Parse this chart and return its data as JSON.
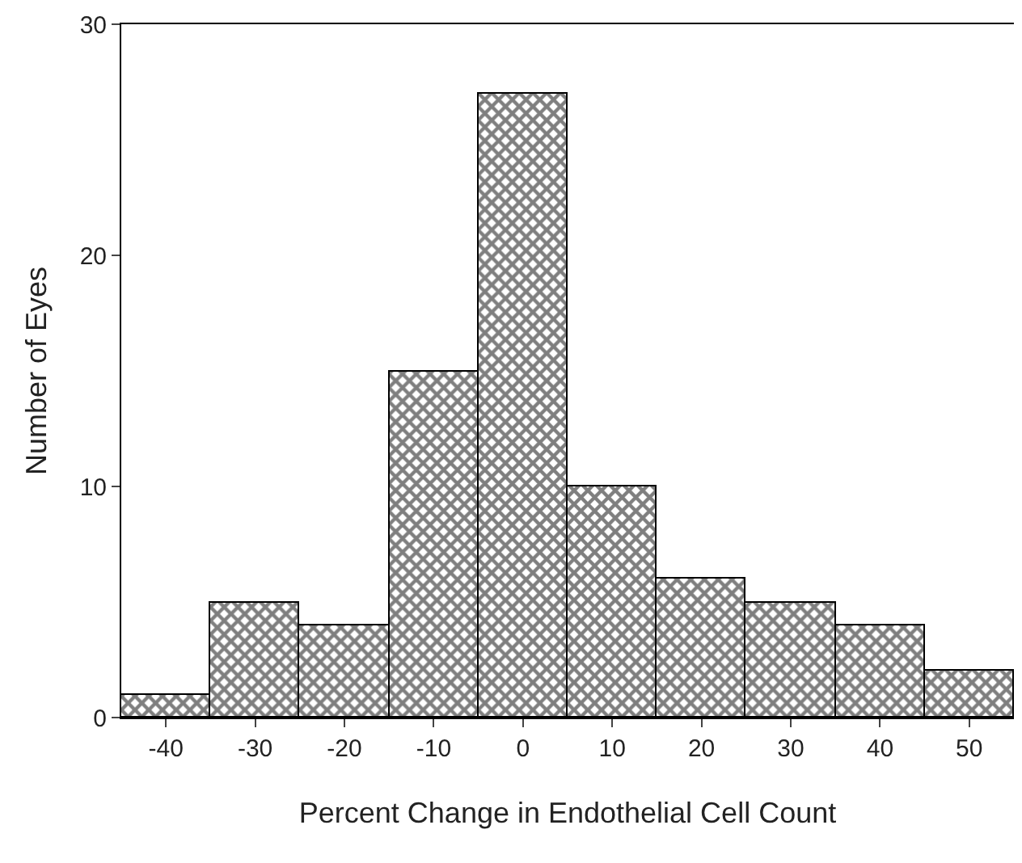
{
  "chart_data": {
    "type": "histogram",
    "xlabel": "Percent Change in Endothelial Cell Count",
    "ylabel": "Number of Eyes",
    "bins": [
      -45,
      -35,
      -25,
      -15,
      -5,
      5,
      15,
      25,
      35,
      45,
      55
    ],
    "values": [
      1,
      5,
      4,
      15,
      27,
      10,
      6,
      5,
      4,
      2
    ],
    "color": "#000000",
    "xlim": [
      -45,
      55
    ],
    "xticks": [
      -40,
      -30,
      -20,
      -10,
      0,
      10,
      20,
      30,
      40,
      50
    ],
    "ylim": [
      0,
      30
    ],
    "yticks": [
      0,
      10,
      20,
      30
    ]
  }
}
